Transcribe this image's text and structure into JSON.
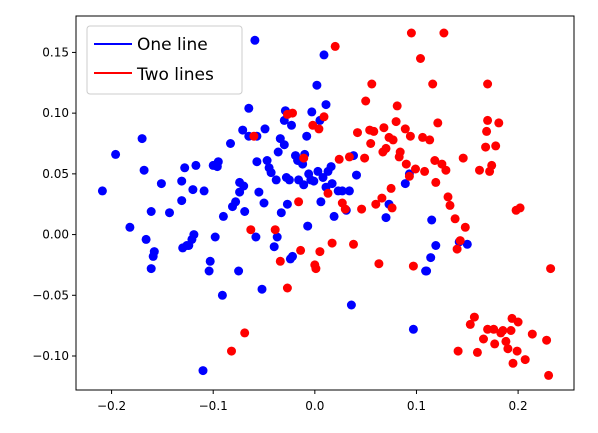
{
  "chart_data": {
    "type": "scatter",
    "title": "",
    "xlabel": "",
    "ylabel": "",
    "xlim": [
      -0.235,
      0.255
    ],
    "ylim": [
      -0.128,
      0.18
    ],
    "x_ticks": [
      -0.2,
      -0.1,
      0.0,
      0.1,
      0.2
    ],
    "x_tick_labels": [
      "−0.2",
      "−0.1",
      "0.0",
      "0.1",
      "0.2"
    ],
    "y_ticks": [
      -0.1,
      -0.05,
      0.0,
      0.05,
      0.1,
      0.15
    ],
    "y_tick_labels": [
      "−0.10",
      "−0.05",
      "0.00",
      "0.05",
      "0.10",
      "0.15"
    ],
    "grid": false,
    "legend_position": "top-left",
    "series": [
      {
        "name": "One line",
        "color": "#0000ff",
        "points": [
          [
            -0.209,
            0.036
          ],
          [
            -0.196,
            0.066
          ],
          [
            -0.182,
            0.006
          ],
          [
            -0.17,
            0.079
          ],
          [
            -0.168,
            0.053
          ],
          [
            -0.166,
            -0.004
          ],
          [
            -0.161,
            0.019
          ],
          [
            -0.161,
            -0.028
          ],
          [
            -0.159,
            -0.018
          ],
          [
            -0.158,
            -0.014
          ],
          [
            -0.151,
            0.042
          ],
          [
            -0.143,
            0.018
          ],
          [
            -0.131,
            0.028
          ],
          [
            -0.131,
            0.044
          ],
          [
            -0.13,
            -0.011
          ],
          [
            -0.128,
            0.055
          ],
          [
            -0.126,
            -0.009
          ],
          [
            -0.124,
            -0.009
          ],
          [
            -0.121,
            -0.004
          ],
          [
            -0.12,
            0.037
          ],
          [
            -0.119,
            0.0
          ],
          [
            -0.117,
            0.057
          ],
          [
            -0.109,
            0.036
          ],
          [
            -0.11,
            -0.112
          ],
          [
            -0.104,
            -0.03
          ],
          [
            -0.103,
            -0.022
          ],
          [
            -0.1,
            0.057
          ],
          [
            -0.098,
            -0.002
          ],
          [
            -0.096,
            0.056
          ],
          [
            -0.095,
            0.06
          ],
          [
            -0.091,
            -0.05
          ],
          [
            -0.09,
            0.015
          ],
          [
            -0.083,
            0.075
          ],
          [
            -0.081,
            0.023
          ],
          [
            -0.078,
            0.027
          ],
          [
            -0.075,
            -0.03
          ],
          [
            -0.074,
            0.035
          ],
          [
            -0.074,
            0.043
          ],
          [
            -0.071,
            0.086
          ],
          [
            -0.07,
            0.04
          ],
          [
            -0.069,
            0.019
          ],
          [
            -0.065,
            0.081
          ],
          [
            -0.065,
            0.104
          ],
          [
            -0.059,
            0.16
          ],
          [
            -0.057,
            0.06
          ],
          [
            -0.058,
            -0.002
          ],
          [
            -0.057,
            0.081
          ],
          [
            -0.055,
            0.035
          ],
          [
            -0.052,
            -0.045
          ],
          [
            -0.05,
            0.026
          ],
          [
            -0.047,
            0.061
          ],
          [
            -0.045,
            0.055
          ],
          [
            -0.043,
            0.051
          ],
          [
            -0.04,
            -0.01
          ],
          [
            -0.038,
            0.045
          ],
          [
            -0.037,
            -0.002
          ],
          [
            -0.036,
            0.068
          ],
          [
            -0.034,
            0.079
          ],
          [
            -0.033,
            0.018
          ],
          [
            -0.03,
            0.074
          ],
          [
            -0.029,
            0.102
          ],
          [
            -0.028,
            0.047
          ],
          [
            -0.027,
            0.025
          ],
          [
            -0.025,
            0.045
          ],
          [
            -0.024,
            -0.02
          ],
          [
            -0.023,
            0.09
          ],
          [
            -0.022,
            -0.018
          ],
          [
            -0.019,
            0.065
          ],
          [
            -0.017,
            0.061
          ],
          [
            -0.016,
            0.045
          ],
          [
            -0.012,
            0.058
          ],
          [
            -0.011,
            0.041
          ],
          [
            -0.01,
            0.066
          ],
          [
            -0.008,
            0.081
          ],
          [
            -0.007,
            0.007
          ],
          [
            -0.006,
            0.05
          ],
          [
            -0.004,
            0.045
          ],
          [
            -0.003,
            0.101
          ],
          [
            -0.001,
            0.044
          ],
          [
            0.002,
            0.123
          ],
          [
            0.003,
            0.052
          ],
          [
            0.005,
            0.094
          ],
          [
            0.006,
            0.027
          ],
          [
            0.008,
            0.047
          ],
          [
            0.009,
            0.148
          ],
          [
            0.011,
            0.039
          ],
          [
            0.011,
            0.107
          ],
          [
            0.013,
            0.052
          ],
          [
            0.016,
            0.056
          ],
          [
            0.017,
            0.042
          ],
          [
            0.019,
            0.015
          ],
          [
            0.023,
            0.036
          ],
          [
            0.027,
            0.036
          ],
          [
            0.031,
            0.02
          ],
          [
            0.034,
            0.036
          ],
          [
            0.036,
            -0.058
          ],
          [
            0.038,
            0.065
          ],
          [
            0.041,
            0.049
          ],
          [
            0.07,
            0.014
          ],
          [
            0.073,
            0.025
          ],
          [
            0.089,
            0.042
          ],
          [
            0.093,
            0.05
          ],
          [
            0.097,
            -0.078
          ],
          [
            0.109,
            -0.03
          ],
          [
            0.11,
            -0.03
          ],
          [
            0.114,
            -0.019
          ],
          [
            0.115,
            0.012
          ],
          [
            0.119,
            -0.009
          ],
          [
            0.142,
            -0.006
          ],
          [
            0.15,
            -0.008
          ],
          [
            -0.049,
            0.087
          ],
          [
            -0.03,
            0.094
          ]
        ]
      },
      {
        "name": "Two lines",
        "color": "#ff0000",
        "points": [
          [
            -0.082,
            -0.096
          ],
          [
            -0.069,
            -0.081
          ],
          [
            -0.063,
            0.004
          ],
          [
            -0.06,
            0.081
          ],
          [
            -0.039,
            0.004
          ],
          [
            -0.034,
            -0.022
          ],
          [
            -0.027,
            0.099
          ],
          [
            -0.027,
            -0.044
          ],
          [
            -0.022,
            0.1
          ],
          [
            -0.016,
            0.027
          ],
          [
            -0.014,
            -0.013
          ],
          [
            -0.011,
            0.063
          ],
          [
            -0.002,
            0.09
          ],
          [
            0.0,
            -0.025
          ],
          [
            0.001,
            -0.028
          ],
          [
            0.004,
            0.087
          ],
          [
            0.005,
            -0.014
          ],
          [
            0.009,
            0.097
          ],
          [
            0.013,
            0.034
          ],
          [
            0.017,
            -0.007
          ],
          [
            0.02,
            0.155
          ],
          [
            0.024,
            0.062
          ],
          [
            0.027,
            0.026
          ],
          [
            0.03,
            0.021
          ],
          [
            0.034,
            0.064
          ],
          [
            0.038,
            -0.008
          ],
          [
            0.042,
            0.084
          ],
          [
            0.046,
            0.021
          ],
          [
            0.049,
            0.063
          ],
          [
            0.05,
            0.11
          ],
          [
            0.054,
            0.086
          ],
          [
            0.055,
            0.075
          ],
          [
            0.056,
            0.124
          ],
          [
            0.058,
            0.085
          ],
          [
            0.06,
            0.025
          ],
          [
            0.063,
            -0.024
          ],
          [
            0.066,
            0.03
          ],
          [
            0.067,
            0.068
          ],
          [
            0.068,
            0.088
          ],
          [
            0.07,
            0.071
          ],
          [
            0.073,
            0.08
          ],
          [
            0.075,
            0.038
          ],
          [
            0.076,
            0.022
          ],
          [
            0.077,
            0.078
          ],
          [
            0.08,
            0.093
          ],
          [
            0.081,
            0.106
          ],
          [
            0.083,
            0.064
          ],
          [
            0.084,
            0.068
          ],
          [
            0.089,
            0.087
          ],
          [
            0.09,
            0.058
          ],
          [
            0.093,
            0.048
          ],
          [
            0.094,
            0.081
          ],
          [
            0.095,
            0.166
          ],
          [
            0.097,
            -0.026
          ],
          [
            0.099,
            0.054
          ],
          [
            0.104,
            0.145
          ],
          [
            0.106,
            0.08
          ],
          [
            0.108,
            0.052
          ],
          [
            0.113,
            0.078
          ],
          [
            0.116,
            0.124
          ],
          [
            0.118,
            0.061
          ],
          [
            0.119,
            0.043
          ],
          [
            0.121,
            0.092
          ],
          [
            0.125,
            0.058
          ],
          [
            0.127,
            0.166
          ],
          [
            0.129,
            0.053
          ],
          [
            0.131,
            0.031
          ],
          [
            0.133,
            0.024
          ],
          [
            0.138,
            0.013
          ],
          [
            0.14,
            -0.012
          ],
          [
            0.141,
            -0.096
          ],
          [
            0.143,
            -0.005
          ],
          [
            0.146,
            0.063
          ],
          [
            0.148,
            0.006
          ],
          [
            0.153,
            -0.074
          ],
          [
            0.157,
            -0.068
          ],
          [
            0.16,
            -0.097
          ],
          [
            0.162,
            0.053
          ],
          [
            0.166,
            -0.086
          ],
          [
            0.168,
            0.072
          ],
          [
            0.169,
            0.085
          ],
          [
            0.17,
            0.124
          ],
          [
            0.17,
            -0.078
          ],
          [
            0.172,
            0.052
          ],
          [
            0.174,
            0.057
          ],
          [
            0.176,
            -0.078
          ],
          [
            0.177,
            -0.09
          ],
          [
            0.178,
            0.073
          ],
          [
            0.181,
            0.092
          ],
          [
            0.183,
            -0.081
          ],
          [
            0.185,
            -0.079
          ],
          [
            0.188,
            -0.088
          ],
          [
            0.19,
            -0.094
          ],
          [
            0.193,
            -0.079
          ],
          [
            0.194,
            -0.069
          ],
          [
            0.195,
            -0.106
          ],
          [
            0.198,
            0.02
          ],
          [
            0.199,
            -0.096
          ],
          [
            0.2,
            -0.072
          ],
          [
            0.207,
            -0.103
          ],
          [
            0.214,
            -0.082
          ],
          [
            0.228,
            -0.087
          ],
          [
            0.23,
            -0.116
          ],
          [
            0.232,
            -0.028
          ],
          [
            0.202,
            0.022
          ],
          [
            0.17,
            0.094
          ]
        ]
      }
    ]
  }
}
